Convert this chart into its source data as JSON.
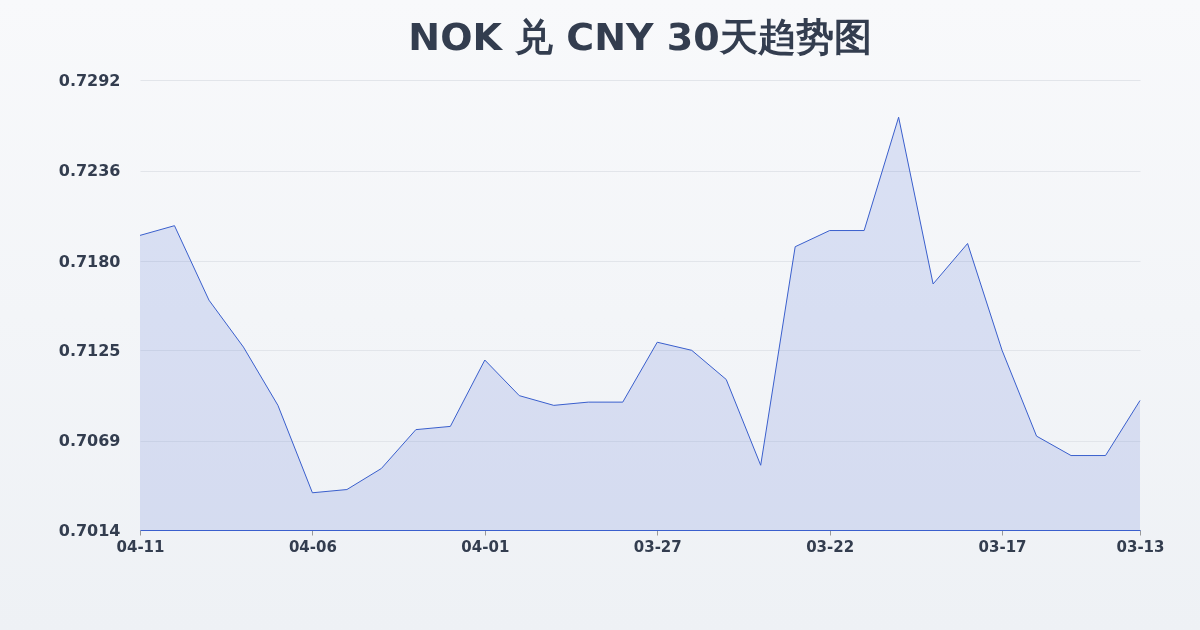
{
  "chart_data": {
    "type": "area",
    "title": "NOK 兑 CNY 30天趋势图",
    "categories": [
      "04-11",
      null,
      null,
      null,
      null,
      "04-06",
      null,
      null,
      null,
      null,
      "04-01",
      null,
      null,
      null,
      null,
      "03-27",
      null,
      null,
      null,
      null,
      "03-22",
      null,
      null,
      null,
      null,
      "03-17",
      null,
      null,
      null,
      "03-13"
    ],
    "series": [
      {
        "color": "#3a5fcd",
        "values": [
          0.7196,
          0.7202,
          0.7156,
          0.7127,
          0.7091,
          0.7037,
          0.7039,
          0.7052,
          0.7076,
          0.7078,
          0.7119,
          0.7097,
          0.7091,
          0.7093,
          0.7093,
          0.713,
          0.7125,
          0.7107,
          0.7054,
          0.7189,
          0.7199,
          0.7199,
          0.7269,
          0.7166,
          0.7191,
          0.7125,
          0.7072,
          0.706,
          0.706,
          0.7094
        ]
      }
    ],
    "ylim": [
      0.7014,
      0.7292
    ],
    "yticks": [
      0.7014,
      0.7069,
      {
        "value": 0.7125,
        "label": "0.7125"
      },
      {
        "value": 0.718,
        "label": "0.7180"
      },
      0.7236,
      0.7292
    ],
    "grid": "y"
  }
}
